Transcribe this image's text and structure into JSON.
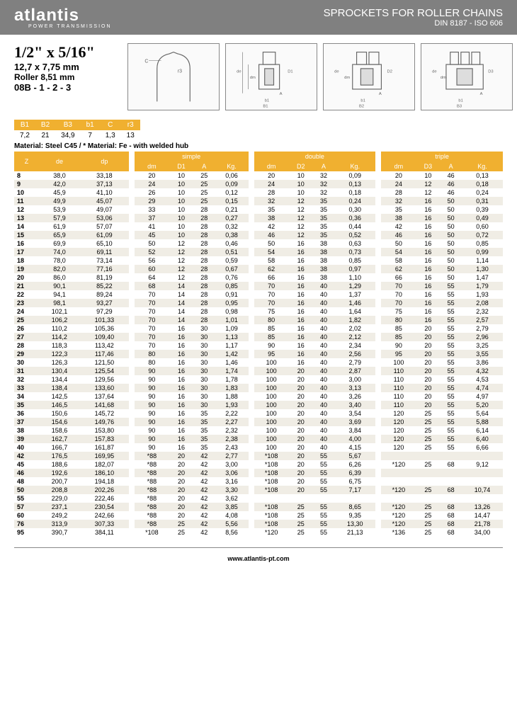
{
  "header": {
    "logo": "atlantis",
    "logo_sub": "POWER TRANSMISSION",
    "title": "SPROCKETS FOR ROLLER CHAINS",
    "subtitle": "DIN 8187 - ISO 606"
  },
  "spec": {
    "main": "1/2\" x 5/16\"",
    "mm": "12,7 x 7,75 mm",
    "roller": "Roller 8,51 mm",
    "code": "08B - 1 - 2 - 3"
  },
  "smalltable": {
    "headers": [
      "B1",
      "B2",
      "B3",
      "b1",
      "C",
      "r3"
    ],
    "row": [
      "7,2",
      "21",
      "34,9",
      "7",
      "1,3",
      "13"
    ]
  },
  "material": "Material: Steel C45 / * Material: Fe - with welded hub",
  "columns": {
    "z": "Z",
    "de": "de",
    "dp": "dp",
    "simple": "simple",
    "double": "double",
    "triple": "triple",
    "dm": "dm",
    "D1": "D1",
    "D2": "D2",
    "D3": "D3",
    "A": "A",
    "Kg": "Kg."
  },
  "rows": [
    {
      "z": "8",
      "de": "38,0",
      "dp": "33,18",
      "s": [
        "20",
        "10",
        "25",
        "0,06"
      ],
      "d": [
        "20",
        "10",
        "32",
        "0,09"
      ],
      "t": [
        "20",
        "10",
        "46",
        "0,13"
      ]
    },
    {
      "z": "9",
      "de": "42,0",
      "dp": "37,13",
      "s": [
        "24",
        "10",
        "25",
        "0,09"
      ],
      "d": [
        "24",
        "10",
        "32",
        "0,13"
      ],
      "t": [
        "24",
        "12",
        "46",
        "0,18"
      ]
    },
    {
      "z": "10",
      "de": "45,9",
      "dp": "41,10",
      "s": [
        "26",
        "10",
        "25",
        "0,12"
      ],
      "d": [
        "28",
        "10",
        "32",
        "0,18"
      ],
      "t": [
        "28",
        "12",
        "46",
        "0,24"
      ]
    },
    {
      "z": "11",
      "de": "49,9",
      "dp": "45,07",
      "s": [
        "29",
        "10",
        "25",
        "0,15"
      ],
      "d": [
        "32",
        "12",
        "35",
        "0,24"
      ],
      "t": [
        "32",
        "16",
        "50",
        "0,31"
      ]
    },
    {
      "z": "12",
      "de": "53,9",
      "dp": "49,07",
      "s": [
        "33",
        "10",
        "28",
        "0,21"
      ],
      "d": [
        "35",
        "12",
        "35",
        "0,30"
      ],
      "t": [
        "35",
        "16",
        "50",
        "0,39"
      ]
    },
    {
      "z": "13",
      "de": "57,9",
      "dp": "53,06",
      "s": [
        "37",
        "10",
        "28",
        "0,27"
      ],
      "d": [
        "38",
        "12",
        "35",
        "0,36"
      ],
      "t": [
        "38",
        "16",
        "50",
        "0,49"
      ]
    },
    {
      "z": "14",
      "de": "61,9",
      "dp": "57,07",
      "s": [
        "41",
        "10",
        "28",
        "0,32"
      ],
      "d": [
        "42",
        "12",
        "35",
        "0,44"
      ],
      "t": [
        "42",
        "16",
        "50",
        "0,60"
      ]
    },
    {
      "z": "15",
      "de": "65,9",
      "dp": "61,09",
      "s": [
        "45",
        "10",
        "28",
        "0,38"
      ],
      "d": [
        "46",
        "12",
        "35",
        "0,52"
      ],
      "t": [
        "46",
        "16",
        "50",
        "0,72"
      ]
    },
    {
      "z": "16",
      "de": "69,9",
      "dp": "65,10",
      "s": [
        "50",
        "12",
        "28",
        "0,46"
      ],
      "d": [
        "50",
        "16",
        "38",
        "0,63"
      ],
      "t": [
        "50",
        "16",
        "50",
        "0,85"
      ]
    },
    {
      "z": "17",
      "de": "74,0",
      "dp": "69,11",
      "s": [
        "52",
        "12",
        "28",
        "0,51"
      ],
      "d": [
        "54",
        "16",
        "38",
        "0,73"
      ],
      "t": [
        "54",
        "16",
        "50",
        "0,99"
      ]
    },
    {
      "z": "18",
      "de": "78,0",
      "dp": "73,14",
      "s": [
        "56",
        "12",
        "28",
        "0,59"
      ],
      "d": [
        "58",
        "16",
        "38",
        "0,85"
      ],
      "t": [
        "58",
        "16",
        "50",
        "1,14"
      ]
    },
    {
      "z": "19",
      "de": "82,0",
      "dp": "77,16",
      "s": [
        "60",
        "12",
        "28",
        "0,67"
      ],
      "d": [
        "62",
        "16",
        "38",
        "0,97"
      ],
      "t": [
        "62",
        "16",
        "50",
        "1,30"
      ]
    },
    {
      "z": "20",
      "de": "86,0",
      "dp": "81,19",
      "s": [
        "64",
        "12",
        "28",
        "0,76"
      ],
      "d": [
        "66",
        "16",
        "38",
        "1,10"
      ],
      "t": [
        "66",
        "16",
        "50",
        "1,47"
      ]
    },
    {
      "z": "21",
      "de": "90,1",
      "dp": "85,22",
      "s": [
        "68",
        "14",
        "28",
        "0,85"
      ],
      "d": [
        "70",
        "16",
        "40",
        "1,29"
      ],
      "t": [
        "70",
        "16",
        "55",
        "1,79"
      ]
    },
    {
      "z": "22",
      "de": "94,1",
      "dp": "89,24",
      "s": [
        "70",
        "14",
        "28",
        "0,91"
      ],
      "d": [
        "70",
        "16",
        "40",
        "1,37"
      ],
      "t": [
        "70",
        "16",
        "55",
        "1,93"
      ]
    },
    {
      "z": "23",
      "de": "98,1",
      "dp": "93,27",
      "s": [
        "70",
        "14",
        "28",
        "0,95"
      ],
      "d": [
        "70",
        "16",
        "40",
        "1,46"
      ],
      "t": [
        "70",
        "16",
        "55",
        "2,08"
      ]
    },
    {
      "z": "24",
      "de": "102,1",
      "dp": "97,29",
      "s": [
        "70",
        "14",
        "28",
        "0,98"
      ],
      "d": [
        "75",
        "16",
        "40",
        "1,64"
      ],
      "t": [
        "75",
        "16",
        "55",
        "2,32"
      ]
    },
    {
      "z": "25",
      "de": "106,2",
      "dp": "101,33",
      "s": [
        "70",
        "14",
        "28",
        "1,01"
      ],
      "d": [
        "80",
        "16",
        "40",
        "1,82"
      ],
      "t": [
        "80",
        "16",
        "55",
        "2,57"
      ]
    },
    {
      "z": "26",
      "de": "110,2",
      "dp": "105,36",
      "s": [
        "70",
        "16",
        "30",
        "1,09"
      ],
      "d": [
        "85",
        "16",
        "40",
        "2,02"
      ],
      "t": [
        "85",
        "20",
        "55",
        "2,79"
      ]
    },
    {
      "z": "27",
      "de": "114,2",
      "dp": "109,40",
      "s": [
        "70",
        "16",
        "30",
        "1,13"
      ],
      "d": [
        "85",
        "16",
        "40",
        "2,12"
      ],
      "t": [
        "85",
        "20",
        "55",
        "2,96"
      ]
    },
    {
      "z": "28",
      "de": "118,3",
      "dp": "113,42",
      "s": [
        "70",
        "16",
        "30",
        "1,17"
      ],
      "d": [
        "90",
        "16",
        "40",
        "2,34"
      ],
      "t": [
        "90",
        "20",
        "55",
        "3,25"
      ]
    },
    {
      "z": "29",
      "de": "122,3",
      "dp": "117,46",
      "s": [
        "80",
        "16",
        "30",
        "1,42"
      ],
      "d": [
        "95",
        "16",
        "40",
        "2,56"
      ],
      "t": [
        "95",
        "20",
        "55",
        "3,55"
      ]
    },
    {
      "z": "30",
      "de": "126,3",
      "dp": "121,50",
      "s": [
        "80",
        "16",
        "30",
        "1,46"
      ],
      "d": [
        "100",
        "16",
        "40",
        "2,79"
      ],
      "t": [
        "100",
        "20",
        "55",
        "3,86"
      ]
    },
    {
      "z": "31",
      "de": "130,4",
      "dp": "125,54",
      "s": [
        "90",
        "16",
        "30",
        "1,74"
      ],
      "d": [
        "100",
        "20",
        "40",
        "2,87"
      ],
      "t": [
        "110",
        "20",
        "55",
        "4,32"
      ]
    },
    {
      "z": "32",
      "de": "134,4",
      "dp": "129,56",
      "s": [
        "90",
        "16",
        "30",
        "1,78"
      ],
      "d": [
        "100",
        "20",
        "40",
        "3,00"
      ],
      "t": [
        "110",
        "20",
        "55",
        "4,53"
      ]
    },
    {
      "z": "33",
      "de": "138,4",
      "dp": "133,60",
      "s": [
        "90",
        "16",
        "30",
        "1,83"
      ],
      "d": [
        "100",
        "20",
        "40",
        "3,13"
      ],
      "t": [
        "110",
        "20",
        "55",
        "4,74"
      ]
    },
    {
      "z": "34",
      "de": "142,5",
      "dp": "137,64",
      "s": [
        "90",
        "16",
        "30",
        "1,88"
      ],
      "d": [
        "100",
        "20",
        "40",
        "3,26"
      ],
      "t": [
        "110",
        "20",
        "55",
        "4,97"
      ]
    },
    {
      "z": "35",
      "de": "146,5",
      "dp": "141,68",
      "s": [
        "90",
        "16",
        "30",
        "1,93"
      ],
      "d": [
        "100",
        "20",
        "40",
        "3,40"
      ],
      "t": [
        "110",
        "20",
        "55",
        "5,20"
      ]
    },
    {
      "z": "36",
      "de": "150,6",
      "dp": "145,72",
      "s": [
        "90",
        "16",
        "35",
        "2,22"
      ],
      "d": [
        "100",
        "20",
        "40",
        "3,54"
      ],
      "t": [
        "120",
        "25",
        "55",
        "5,64"
      ]
    },
    {
      "z": "37",
      "de": "154,6",
      "dp": "149,76",
      "s": [
        "90",
        "16",
        "35",
        "2,27"
      ],
      "d": [
        "100",
        "20",
        "40",
        "3,69"
      ],
      "t": [
        "120",
        "25",
        "55",
        "5,88"
      ]
    },
    {
      "z": "38",
      "de": "158,6",
      "dp": "153,80",
      "s": [
        "90",
        "16",
        "35",
        "2,32"
      ],
      "d": [
        "100",
        "20",
        "40",
        "3,84"
      ],
      "t": [
        "120",
        "25",
        "55",
        "6,14"
      ]
    },
    {
      "z": "39",
      "de": "162,7",
      "dp": "157,83",
      "s": [
        "90",
        "16",
        "35",
        "2,38"
      ],
      "d": [
        "100",
        "20",
        "40",
        "4,00"
      ],
      "t": [
        "120",
        "25",
        "55",
        "6,40"
      ]
    },
    {
      "z": "40",
      "de": "166,7",
      "dp": "161,87",
      "s": [
        "90",
        "16",
        "35",
        "2,43"
      ],
      "d": [
        "100",
        "20",
        "40",
        "4,15"
      ],
      "t": [
        "120",
        "25",
        "55",
        "6,66"
      ]
    },
    {
      "z": "42",
      "de": "176,5",
      "dp": "169,95",
      "s": [
        "*88",
        "20",
        "42",
        "2,77"
      ],
      "d": [
        "*108",
        "20",
        "55",
        "5,67"
      ],
      "t": [
        "",
        "",
        "",
        ""
      ]
    },
    {
      "z": "45",
      "de": "188,6",
      "dp": "182,07",
      "s": [
        "*88",
        "20",
        "42",
        "3,00"
      ],
      "d": [
        "*108",
        "20",
        "55",
        "6,26"
      ],
      "t": [
        "*120",
        "25",
        "68",
        "9,12"
      ]
    },
    {
      "z": "46",
      "de": "192,6",
      "dp": "186,10",
      "s": [
        "*88",
        "20",
        "42",
        "3,06"
      ],
      "d": [
        "*108",
        "20",
        "55",
        "6,39"
      ],
      "t": [
        "",
        "",
        "",
        ""
      ]
    },
    {
      "z": "48",
      "de": "200,7",
      "dp": "194,18",
      "s": [
        "*88",
        "20",
        "42",
        "3,16"
      ],
      "d": [
        "*108",
        "20",
        "55",
        "6,75"
      ],
      "t": [
        "",
        "",
        "",
        ""
      ]
    },
    {
      "z": "50",
      "de": "208,8",
      "dp": "202,26",
      "s": [
        "*88",
        "20",
        "42",
        "3,30"
      ],
      "d": [
        "*108",
        "20",
        "55",
        "7,17"
      ],
      "t": [
        "*120",
        "25",
        "68",
        "10,74"
      ]
    },
    {
      "z": "55",
      "de": "229,0",
      "dp": "222,46",
      "s": [
        "*88",
        "20",
        "42",
        "3,62"
      ],
      "d": [
        "",
        "",
        "",
        ""
      ],
      "t": [
        "",
        "",
        "",
        ""
      ]
    },
    {
      "z": "57",
      "de": "237,1",
      "dp": "230,54",
      "s": [
        "*88",
        "20",
        "42",
        "3,85"
      ],
      "d": [
        "*108",
        "25",
        "55",
        "8,65"
      ],
      "t": [
        "*120",
        "25",
        "68",
        "13,26"
      ]
    },
    {
      "z": "60",
      "de": "249,2",
      "dp": "242,66",
      "s": [
        "*88",
        "20",
        "42",
        "4,08"
      ],
      "d": [
        "*108",
        "25",
        "55",
        "9,35"
      ],
      "t": [
        "*120",
        "25",
        "68",
        "14,47"
      ]
    },
    {
      "z": "76",
      "de": "313,9",
      "dp": "307,33",
      "s": [
        "*88",
        "25",
        "42",
        "5,56"
      ],
      "d": [
        "*108",
        "25",
        "55",
        "13,30"
      ],
      "t": [
        "*120",
        "25",
        "68",
        "21,78"
      ]
    },
    {
      "z": "95",
      "de": "390,7",
      "dp": "384,11",
      "s": [
        "*108",
        "25",
        "42",
        "8,56"
      ],
      "d": [
        "*120",
        "25",
        "55",
        "21,13"
      ],
      "t": [
        "*136",
        "25",
        "68",
        "34,00"
      ]
    }
  ],
  "footer": "www.atlantis-pt.com"
}
